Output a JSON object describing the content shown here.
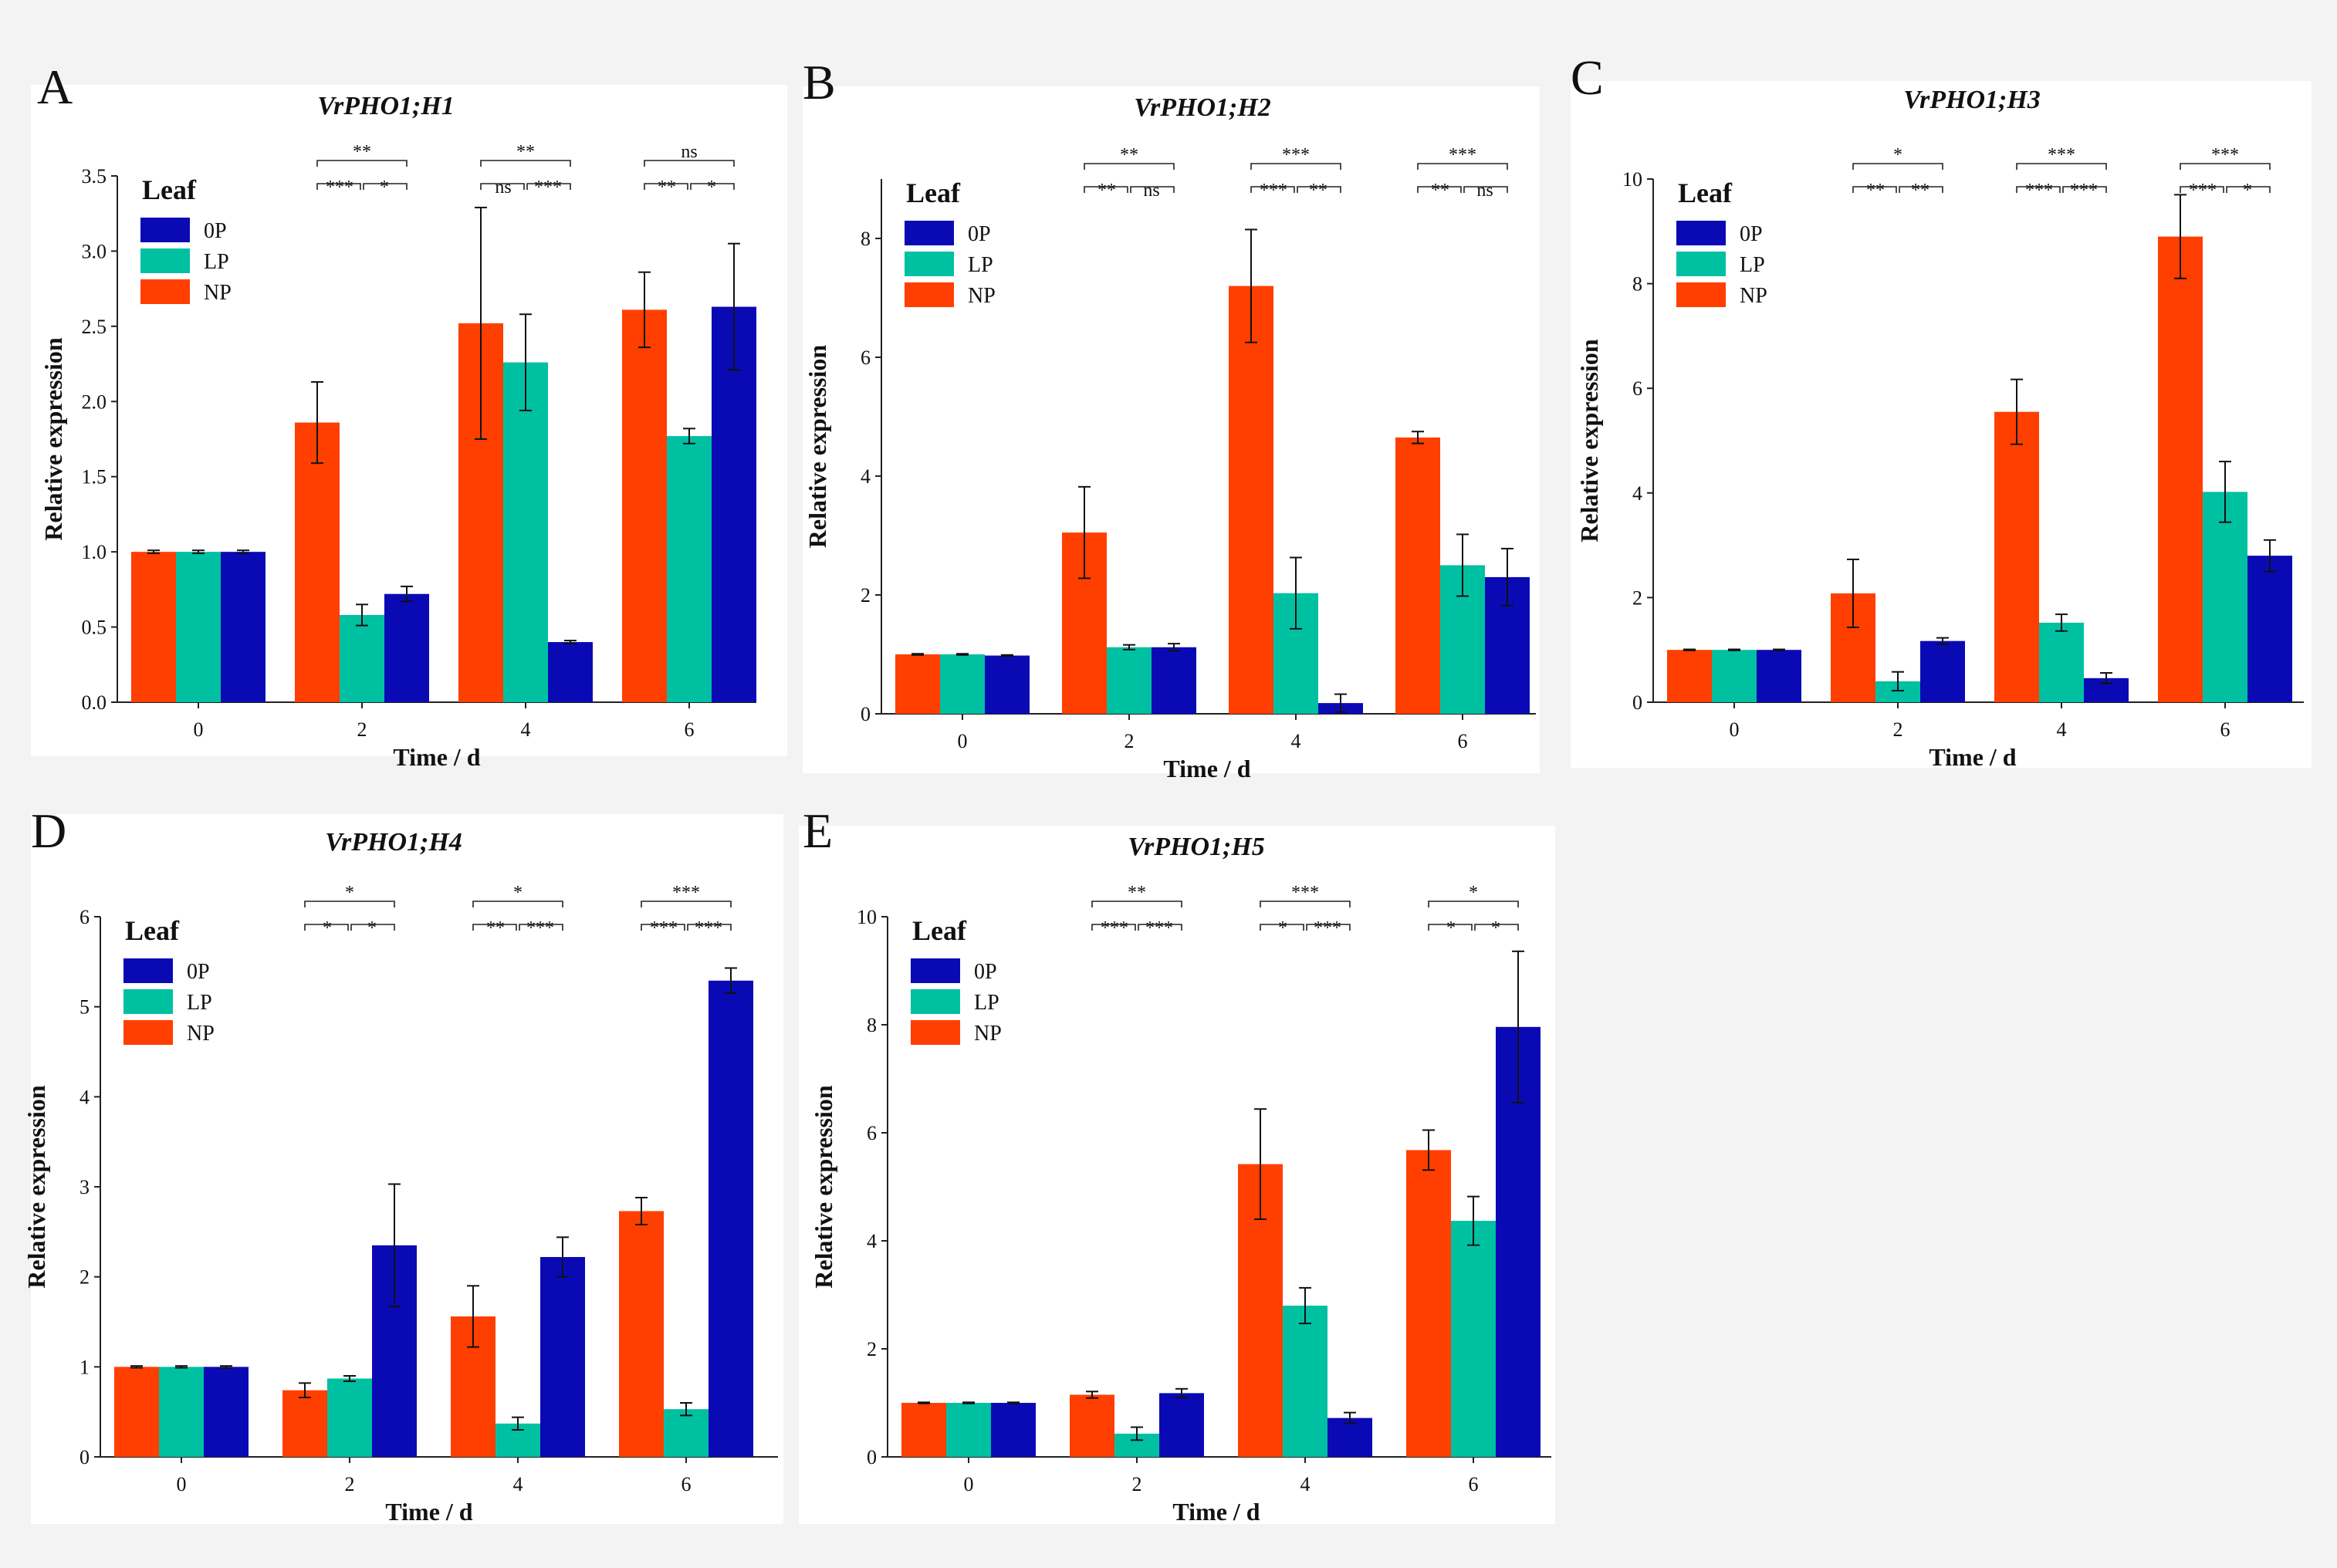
{
  "figure": {
    "colors": {
      "0P": "#0a0ab5",
      "LP": "#00c0a2",
      "NP": "#ff3f00",
      "axis": "#222222",
      "error": "#111111"
    },
    "series_order": [
      "NP",
      "LP",
      "0P"
    ],
    "legend_order": [
      "0P",
      "LP",
      "NP"
    ]
  },
  "chart_data": [
    {
      "id": "A",
      "type": "bar",
      "panel_label": "A",
      "title": "VrPHO1;H1",
      "xlabel": "Time / d",
      "ylabel": "Relative expression",
      "categories": [
        "0",
        "2",
        "4",
        "6"
      ],
      "ylim": [
        0,
        3.5
      ],
      "yticks": [
        0,
        0.5,
        1,
        1.5,
        2,
        2.5,
        3,
        3.5
      ],
      "ytick_labels": [
        "0.0",
        "0.5",
        "1.0",
        "1.5",
        "2.0",
        "2.5",
        "3.0",
        "3.5"
      ],
      "legend_title": "Leaf",
      "legend_labels": [
        "0P",
        "LP",
        "NP"
      ],
      "series": [
        {
          "name": "NP",
          "values": [
            1.0,
            1.86,
            2.52,
            2.61
          ],
          "errors": [
            0.01,
            0.27,
            0.77,
            0.25
          ]
        },
        {
          "name": "LP",
          "values": [
            1.0,
            0.58,
            2.26,
            1.77
          ],
          "errors": [
            0.01,
            0.07,
            0.32,
            0.05
          ]
        },
        {
          "name": "0P",
          "values": [
            1.0,
            0.72,
            0.4,
            2.63
          ],
          "errors": [
            0.01,
            0.05,
            0.01,
            0.42
          ]
        }
      ],
      "significance": [
        {
          "category": "2",
          "top": "**",
          "left": "***",
          "right": "*"
        },
        {
          "category": "4",
          "top": "**",
          "left": "ns",
          "right": "***"
        },
        {
          "category": "6",
          "top": "ns",
          "left": "**",
          "right": "*"
        }
      ]
    },
    {
      "id": "B",
      "type": "bar",
      "panel_label": "B",
      "title": "VrPHO1;H2",
      "xlabel": "Time / d",
      "ylabel": "Relative expression",
      "categories": [
        "0",
        "2",
        "4",
        "6"
      ],
      "ylim": [
        0,
        9
      ],
      "yticks": [
        0,
        2,
        4,
        6,
        8
      ],
      "ytick_labels": [
        "0",
        "2",
        "4",
        "6",
        "8"
      ],
      "legend_title": "Leaf",
      "legend_labels": [
        "0P",
        "LP",
        "NP"
      ],
      "series": [
        {
          "name": "NP",
          "values": [
            1.0,
            3.05,
            7.2,
            4.65
          ],
          "errors": [
            0.01,
            0.77,
            0.95,
            0.1
          ]
        },
        {
          "name": "LP",
          "values": [
            1.0,
            1.12,
            2.03,
            2.5
          ],
          "errors": [
            0.01,
            0.04,
            0.6,
            0.52
          ]
        },
        {
          "name": "0P",
          "values": [
            0.98,
            1.12,
            0.18,
            2.3
          ],
          "errors": [
            0.01,
            0.06,
            0.15,
            0.48
          ]
        }
      ],
      "significance": [
        {
          "category": "2",
          "top": "**",
          "left": "**",
          "right": "ns"
        },
        {
          "category": "4",
          "top": "***",
          "left": "***",
          "right": "**"
        },
        {
          "category": "6",
          "top": "***",
          "left": "**",
          "right": "ns"
        }
      ]
    },
    {
      "id": "C",
      "type": "bar",
      "panel_label": "C",
      "title": "VrPHO1;H3",
      "xlabel": "Time / d",
      "ylabel": "Relative expression",
      "categories": [
        "0",
        "2",
        "4",
        "6"
      ],
      "ylim": [
        0,
        10
      ],
      "yticks": [
        0,
        2,
        4,
        6,
        8,
        10
      ],
      "ytick_labels": [
        "0",
        "2",
        "4",
        "6",
        "8",
        "10"
      ],
      "legend_title": "Leaf",
      "legend_labels": [
        "0P",
        "LP",
        "NP"
      ],
      "series": [
        {
          "name": "NP",
          "values": [
            1.0,
            2.08,
            5.55,
            8.9
          ],
          "errors": [
            0.01,
            0.65,
            0.62,
            0.8
          ]
        },
        {
          "name": "LP",
          "values": [
            1.0,
            0.4,
            1.52,
            4.02
          ],
          "errors": [
            0.01,
            0.18,
            0.16,
            0.58
          ]
        },
        {
          "name": "0P",
          "values": [
            1.0,
            1.17,
            0.46,
            2.8
          ],
          "errors": [
            0.01,
            0.06,
            0.1,
            0.3
          ]
        }
      ],
      "significance": [
        {
          "category": "2",
          "top": "*",
          "left": "**",
          "right": "**"
        },
        {
          "category": "4",
          "top": "***",
          "left": "***",
          "right": "***"
        },
        {
          "category": "6",
          "top": "***",
          "left": "***",
          "right": "*"
        }
      ]
    },
    {
      "id": "D",
      "type": "bar",
      "panel_label": "D",
      "title": "VrPHO1;H4",
      "xlabel": "Time / d",
      "ylabel": "Relative expression",
      "categories": [
        "0",
        "2",
        "4",
        "6"
      ],
      "ylim": [
        0,
        6
      ],
      "yticks": [
        0,
        1,
        2,
        3,
        4,
        5,
        6
      ],
      "ytick_labels": [
        "0",
        "1",
        "2",
        "3",
        "4",
        "5",
        "6"
      ],
      "legend_title": "Leaf",
      "legend_labels": [
        "0P",
        "LP",
        "NP"
      ],
      "series": [
        {
          "name": "NP",
          "values": [
            1.0,
            0.74,
            1.56,
            2.73
          ],
          "errors": [
            0.01,
            0.08,
            0.34,
            0.15
          ]
        },
        {
          "name": "LP",
          "values": [
            1.0,
            0.87,
            0.37,
            0.53
          ],
          "errors": [
            0.01,
            0.03,
            0.07,
            0.07
          ]
        },
        {
          "name": "0P",
          "values": [
            1.0,
            2.35,
            2.22,
            5.29
          ],
          "errors": [
            0.01,
            0.68,
            0.22,
            0.14
          ]
        }
      ],
      "significance": [
        {
          "category": "2",
          "top": "*",
          "left": "*",
          "right": "*"
        },
        {
          "category": "4",
          "top": "*",
          "left": "**",
          "right": "***"
        },
        {
          "category": "6",
          "top": "***",
          "left": "***",
          "right": "***"
        }
      ]
    },
    {
      "id": "E",
      "type": "bar",
      "panel_label": "E",
      "title": "VrPHO1;H5",
      "xlabel": "Time / d",
      "ylabel": "Relative expression",
      "categories": [
        "0",
        "2",
        "4",
        "6"
      ],
      "ylim": [
        0,
        10
      ],
      "yticks": [
        0,
        2,
        4,
        6,
        8,
        10
      ],
      "ytick_labels": [
        "0",
        "2",
        "4",
        "6",
        "8",
        "10"
      ],
      "legend_title": "Leaf",
      "legend_labels": [
        "0P",
        "LP",
        "NP"
      ],
      "series": [
        {
          "name": "NP",
          "values": [
            1.0,
            1.15,
            5.42,
            5.68
          ],
          "errors": [
            0.01,
            0.06,
            1.02,
            0.37
          ]
        },
        {
          "name": "LP",
          "values": [
            1.0,
            0.43,
            2.8,
            4.37
          ],
          "errors": [
            0.01,
            0.12,
            0.33,
            0.45
          ]
        },
        {
          "name": "0P",
          "values": [
            1.0,
            1.18,
            0.72,
            7.96
          ],
          "errors": [
            0.01,
            0.08,
            0.1,
            1.4
          ]
        }
      ],
      "significance": [
        {
          "category": "2",
          "top": "**",
          "left": "***",
          "right": "***"
        },
        {
          "category": "4",
          "top": "***",
          "left": "*",
          "right": "***"
        },
        {
          "category": "6",
          "top": "*",
          "left": "*",
          "right": "*"
        }
      ]
    }
  ]
}
